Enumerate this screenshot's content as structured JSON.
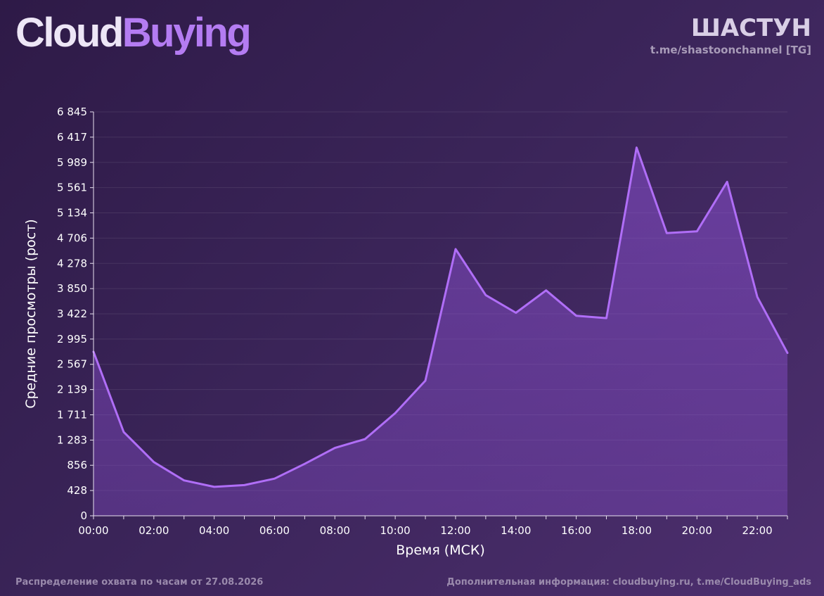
{
  "header": {
    "logo_part1": "Cloud",
    "logo_part2": "Buying",
    "channel_name": "ШАСТУН",
    "channel_link": "t.me/shastoonchannel [TG]"
  },
  "footer": {
    "left": "Распределение охвата по часам от 27.08.2026",
    "right": "Дополнительная информация: cloudbuying.ru, t.me/CloudBuying_ads"
  },
  "colors": {
    "accent": "#b47cf2",
    "line": "#b06ef7",
    "area": "#8a4fd0"
  },
  "chart_data": {
    "type": "area",
    "xlabel": "Время (МСК)",
    "ylabel": "Средние просмотры (рост)",
    "x": [
      "00:00",
      "01:00",
      "02:00",
      "03:00",
      "04:00",
      "05:00",
      "06:00",
      "07:00",
      "08:00",
      "09:00",
      "10:00",
      "11:00",
      "12:00",
      "13:00",
      "14:00",
      "15:00",
      "16:00",
      "17:00",
      "18:00",
      "19:00",
      "20:00",
      "21:00",
      "22:00",
      "23:00"
    ],
    "x_tick_labels": [
      "00:00",
      "02:00",
      "04:00",
      "06:00",
      "08:00",
      "10:00",
      "12:00",
      "14:00",
      "16:00",
      "18:00",
      "20:00",
      "22:00"
    ],
    "values": [
      2780,
      1420,
      910,
      600,
      490,
      520,
      630,
      880,
      1150,
      1300,
      1740,
      2290,
      4520,
      3740,
      3440,
      3820,
      3390,
      3350,
      6240,
      4790,
      4820,
      5660,
      3710,
      2760
    ],
    "y_ticks": [
      "0",
      "428",
      "856",
      "1 283",
      "1 711",
      "2 139",
      "2 567",
      "2 995",
      "3 422",
      "3 850",
      "4 278",
      "4 706",
      "5 134",
      "5 561",
      "5 989",
      "6 417",
      "6 845"
    ],
    "ylim": [
      0,
      6845
    ],
    "grid": true
  }
}
